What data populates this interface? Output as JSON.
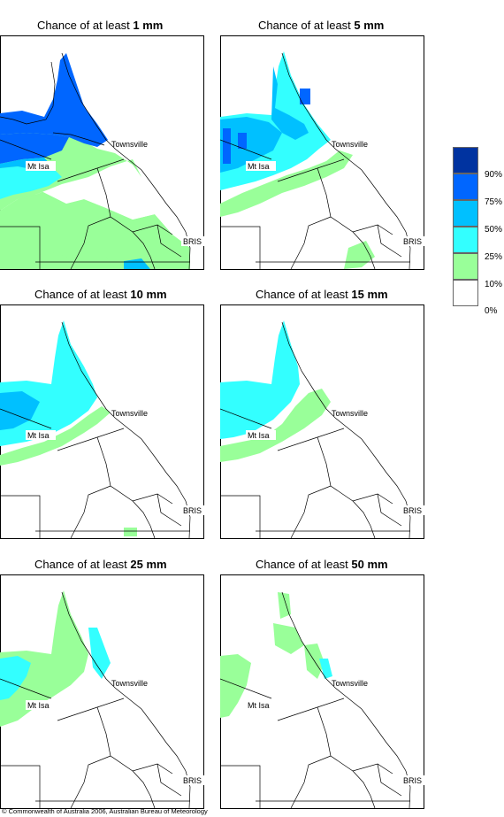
{
  "panels": [
    {
      "prefix": "Chance of at least ",
      "amount": "1 mm"
    },
    {
      "prefix": "Chance of at least ",
      "amount": "5 mm"
    },
    {
      "prefix": "Chance of at least ",
      "amount": "10 mm"
    },
    {
      "prefix": "Chance of at least ",
      "amount": "15 mm"
    },
    {
      "prefix": "Chance of at least ",
      "amount": "25 mm"
    },
    {
      "prefix": "Chance of at least ",
      "amount": "50 mm"
    }
  ],
  "places": {
    "townsville": "Townsville",
    "mt_isa": "Mt Isa",
    "bris": "BRIS"
  },
  "legend": {
    "labels": [
      "90%",
      "75%",
      "50%",
      "25%",
      "10%",
      "0%"
    ],
    "colors": [
      "#0033a0",
      "#0066ff",
      "#00c0ff",
      "#33ffff",
      "#99ff99",
      "#ffffff"
    ]
  },
  "copyright": "© Commonwealth of Australia 2006, Australian Bureau of Meteorology"
}
